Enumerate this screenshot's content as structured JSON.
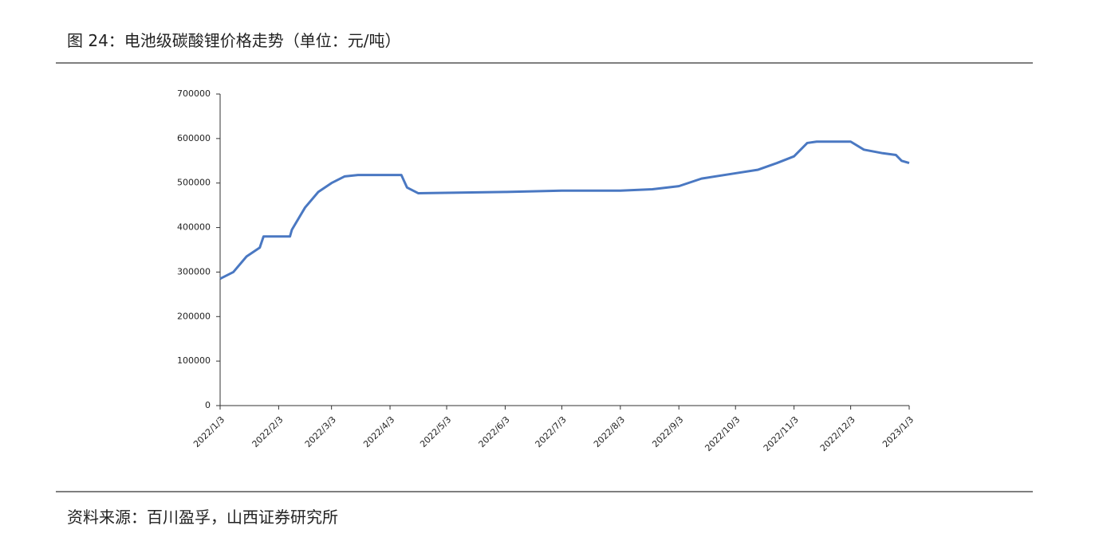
{
  "chart_data": {
    "type": "line",
    "title": "图 24：电池级碳酸锂价格走势（单位：元/吨）",
    "source": "资料来源：百川盈孚，山西证券研究所",
    "x": [
      "2022/1/3",
      "2022/1/10",
      "2022/1/17",
      "2022/1/24",
      "2022/1/26",
      "2022/2/9",
      "2022/2/10",
      "2022/2/17",
      "2022/2/24",
      "2022/3/3",
      "2022/3/10",
      "2022/3/17",
      "2022/4/9",
      "2022/4/12",
      "2022/4/18",
      "2022/6/3",
      "2022/7/3",
      "2022/8/3",
      "2022/8/20",
      "2022/9/3",
      "2022/9/15",
      "2022/10/3",
      "2022/10/15",
      "2022/10/25",
      "2022/11/3",
      "2022/11/10",
      "2022/11/15",
      "2022/12/3",
      "2022/12/10",
      "2022/12/20",
      "2022/12/27",
      "2022/12/30",
      "2023/1/3"
    ],
    "series": [
      {
        "name": "电池级碳酸锂",
        "color": "#4a78c2",
        "values": [
          285000,
          300000,
          335000,
          355000,
          380000,
          380000,
          395000,
          445000,
          480000,
          500000,
          515000,
          518000,
          518000,
          490000,
          477000,
          480000,
          483000,
          483000,
          486000,
          493000,
          510000,
          522000,
          530000,
          545000,
          560000,
          590000,
          593000,
          593000,
          575000,
          567000,
          563000,
          550000,
          545000
        ]
      }
    ],
    "xlim": [
      "2022/1/3",
      "2023/1/3"
    ],
    "xticks": [
      "2022/1/3",
      "2022/2/3",
      "2022/3/3",
      "2022/4/3",
      "2022/5/3",
      "2022/6/3",
      "2022/7/3",
      "2022/8/3",
      "2022/9/3",
      "2022/10/3",
      "2022/11/3",
      "2022/12/3",
      "2023/1/3"
    ],
    "ylim": [
      0,
      700000
    ],
    "yticks": [
      0,
      100000,
      200000,
      300000,
      400000,
      500000,
      600000,
      700000
    ]
  }
}
